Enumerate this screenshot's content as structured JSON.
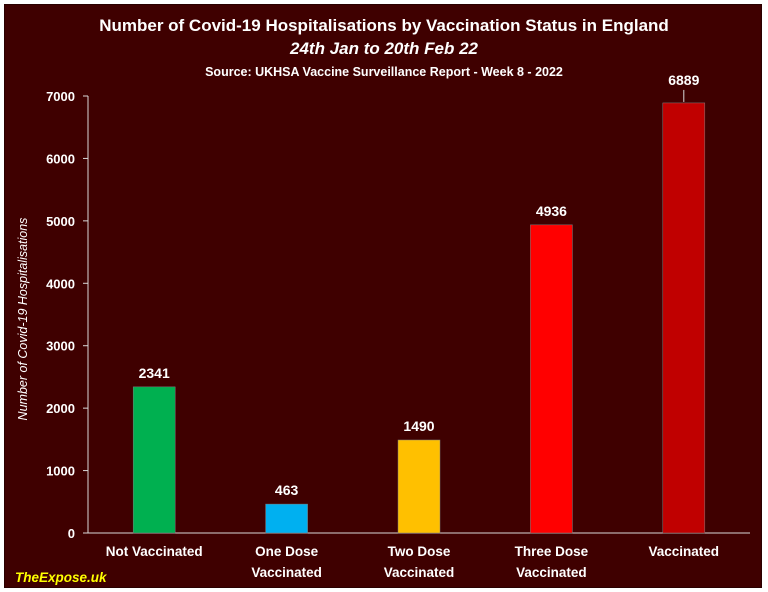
{
  "chart_data": {
    "type": "bar",
    "title": "Number of Covid-19 Hospitalisations by Vaccination Status in England",
    "subtitle": "24th Jan to 20th Feb 22",
    "source": "Source: UKHSA Vaccine Surveillance Report - Week 8 - 2022",
    "xlabel": "",
    "ylabel": "Number of Covid-19 Hospitalisations",
    "ylim": [
      0,
      7000
    ],
    "yticks": [
      "0",
      "1000",
      "2000",
      "3000",
      "4000",
      "5000",
      "6000",
      "7000"
    ],
    "grid": false,
    "categories": [
      [
        "Not Vaccinated"
      ],
      [
        "One Dose",
        "Vaccinated"
      ],
      [
        "Two Dose",
        "Vaccinated"
      ],
      [
        "Three Dose",
        "Vaccinated"
      ],
      [
        "Vaccinated"
      ]
    ],
    "values": [
      2341,
      463,
      1490,
      4936,
      6889
    ],
    "data_labels": [
      "2341",
      "463",
      "1490",
      "4936",
      "6889"
    ],
    "colors": [
      "#00b050",
      "#00b0f0",
      "#ffc000",
      "#ff0000",
      "#c00000"
    ]
  },
  "watermark": "TheExpose.uk",
  "colors": {
    "background": "#3f0000",
    "axis": "#d9d9d9",
    "text": "#ffffff",
    "brand": "#ffff00"
  }
}
